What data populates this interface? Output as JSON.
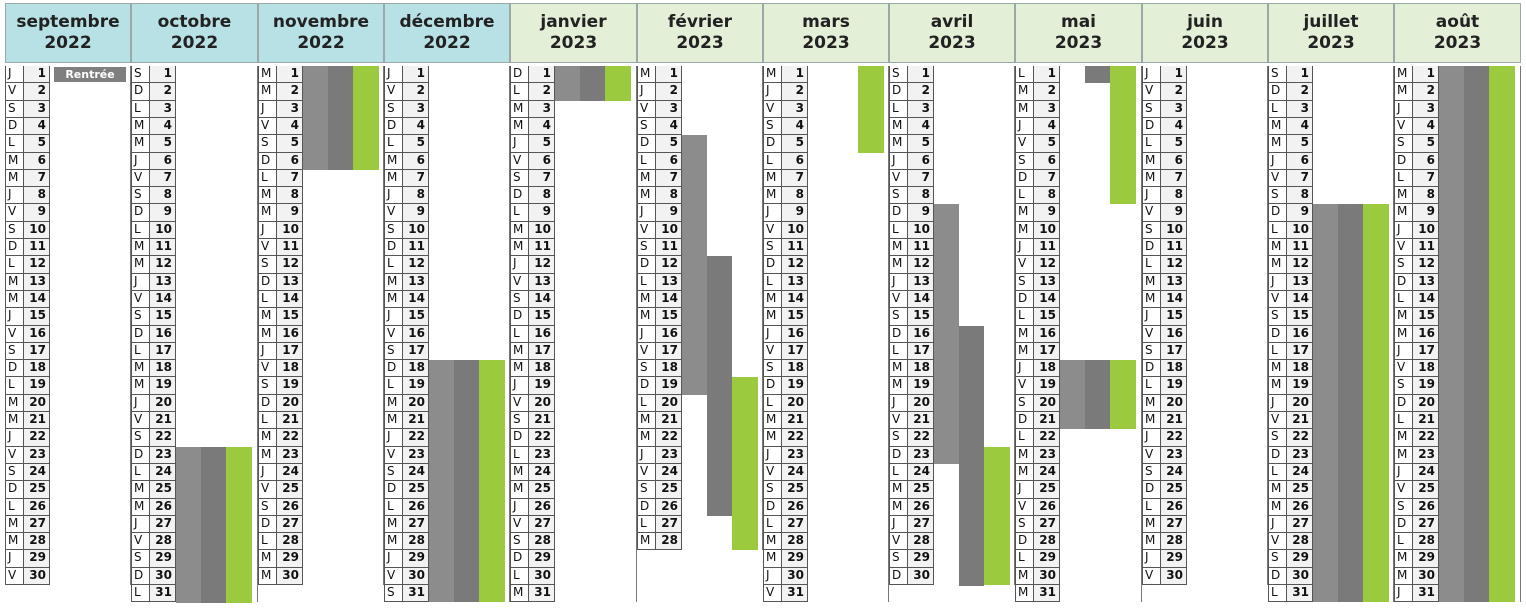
{
  "colors": {
    "header_blue": "#b7e1e4",
    "header_green": "#e3efd6",
    "holiday_gray": "#8c8c8c",
    "holiday_gray_dark": "#7a7a7a",
    "holiday_green": "#9bca3e"
  },
  "months": [
    {
      "name": "septembre",
      "year": "2022",
      "theme": "blue",
      "days": 30,
      "weekday_start": 3,
      "label": {
        "text": "Rentrée",
        "day": 1
      },
      "blocks": []
    },
    {
      "name": "octobre",
      "year": "2022",
      "theme": "blue",
      "days": 31,
      "weekday_start": 5,
      "blocks": [
        {
          "from": 23,
          "to": 31
        }
      ]
    },
    {
      "name": "novembre",
      "year": "2022",
      "theme": "blue",
      "days": 30,
      "weekday_start": 1,
      "blocks": [
        {
          "from": 1,
          "to": 6
        }
      ]
    },
    {
      "name": "décembre",
      "year": "2022",
      "theme": "blue",
      "days": 31,
      "weekday_start": 3,
      "blocks": [
        {
          "from": 18,
          "to": 31
        }
      ]
    },
    {
      "name": "janvier",
      "year": "2023",
      "theme": "green",
      "days": 31,
      "weekday_start": 6,
      "blocks": [
        {
          "from": 1,
          "to": 2
        }
      ]
    },
    {
      "name": "février",
      "year": "2023",
      "theme": "green",
      "days": 28,
      "weekday_start": 2,
      "blocks": [
        {
          "from": 5,
          "to": 19,
          "lanes": [
            0
          ]
        },
        {
          "from": 12,
          "to": 26,
          "lanes": [
            1
          ]
        },
        {
          "from": 19,
          "to": 28,
          "lanes": [
            2
          ]
        }
      ]
    },
    {
      "name": "mars",
      "year": "2023",
      "theme": "green",
      "days": 31,
      "weekday_start": 2,
      "blocks": [
        {
          "from": 1,
          "to": 5,
          "lanes": [
            2
          ]
        }
      ]
    },
    {
      "name": "avril",
      "year": "2023",
      "theme": "green",
      "days": 30,
      "weekday_start": 5,
      "blocks": [
        {
          "from": 9,
          "to": 23,
          "lanes": [
            0
          ]
        },
        {
          "from": 16,
          "to": 30,
          "lanes": [
            1
          ]
        },
        {
          "from": 23,
          "to": 30,
          "lanes": [
            2
          ]
        }
      ]
    },
    {
      "name": "mai",
      "year": "2023",
      "theme": "green",
      "days": 31,
      "weekday_start": 0,
      "blocks": [
        {
          "from": 1,
          "to": 1,
          "lanes": [
            1
          ]
        },
        {
          "from": 1,
          "to": 8,
          "lanes": [
            2
          ]
        },
        {
          "from": 18,
          "to": 21
        }
      ]
    },
    {
      "name": "juin",
      "year": "2023",
      "theme": "green",
      "days": 30,
      "weekday_start": 3,
      "blocks": []
    },
    {
      "name": "juillet",
      "year": "2023",
      "theme": "green",
      "days": 31,
      "weekday_start": 5,
      "blocks": [
        {
          "from": 9,
          "to": 31
        }
      ]
    },
    {
      "name": "août",
      "year": "2023",
      "theme": "green",
      "days": 31,
      "weekday_start": 1,
      "blocks": [
        {
          "from": 1,
          "to": 31
        }
      ]
    }
  ],
  "weekday_letters": [
    "L",
    "M",
    "M",
    "J",
    "V",
    "S",
    "D"
  ]
}
